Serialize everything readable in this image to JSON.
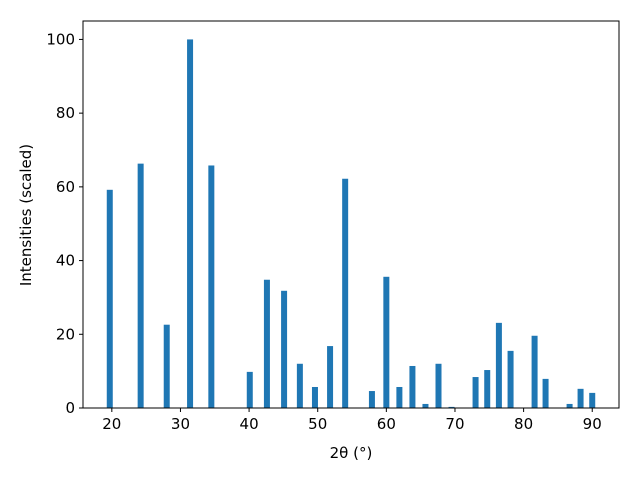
{
  "chart_data": {
    "type": "bar",
    "xlabel": "2θ (°)",
    "ylabel": "Intensities (scaled)",
    "x": [
      19.7,
      24.2,
      28.0,
      31.4,
      34.5,
      40.1,
      42.6,
      45.1,
      47.4,
      49.6,
      51.8,
      54.0,
      57.9,
      60.0,
      61.9,
      63.8,
      65.7,
      67.6,
      69.5,
      73.0,
      74.7,
      76.4,
      78.1,
      81.6,
      83.2,
      86.7,
      88.3,
      90.0
    ],
    "values": [
      59.2,
      66.3,
      22.6,
      100,
      65.8,
      9.8,
      34.8,
      31.8,
      12.0,
      5.7,
      16.8,
      62.2,
      4.6,
      35.6,
      5.7,
      11.4,
      1.1,
      12.0,
      0.3,
      8.4,
      10.3,
      23.1,
      15.5,
      19.6,
      7.9,
      1.1,
      5.2,
      4.1
    ],
    "color": "#1f77b4",
    "xlim": [
      15.8,
      93.9
    ],
    "xticks": [
      20,
      30,
      40,
      50,
      60,
      70,
      80,
      90
    ],
    "ylim": [
      0,
      105
    ],
    "yticks": [
      0,
      20,
      40,
      60,
      80,
      100
    ],
    "grid": false
  }
}
